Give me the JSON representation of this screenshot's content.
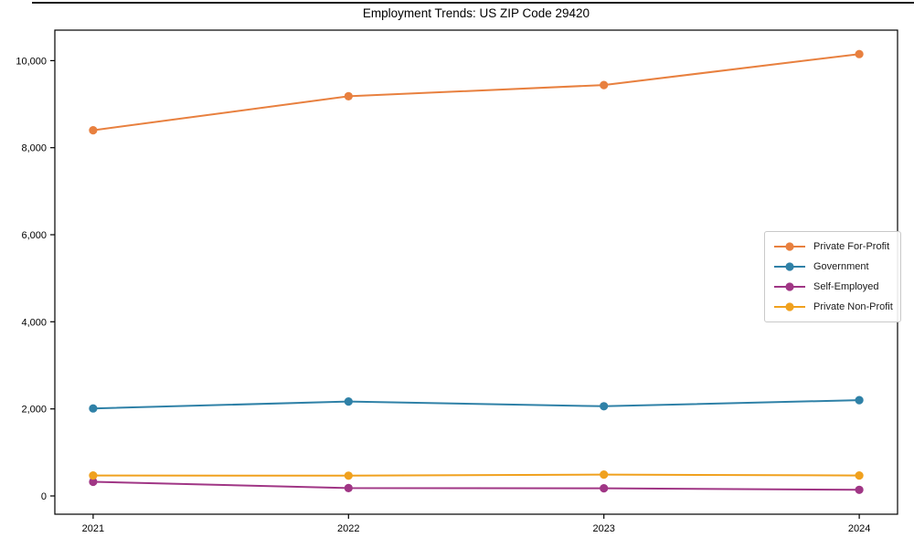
{
  "chart_data": {
    "type": "line",
    "title": "Employment Trends: US ZIP Code 29420",
    "x": [
      2021,
      2022,
      2023,
      2024
    ],
    "xtick_labels": [
      "2021",
      "2022",
      "2023",
      "2024"
    ],
    "yticks": [
      0,
      2000,
      4000,
      6000,
      8000,
      10000
    ],
    "ytick_labels": [
      "0",
      "2,000",
      "4,000",
      "6,000",
      "8,000",
      "10,000"
    ],
    "xlim": [
      2020.85,
      2024.15
    ],
    "ylim": [
      -420,
      10700
    ],
    "grid": false,
    "legend_position": "center-right",
    "marker": "circle",
    "series": [
      {
        "name": "Private For-Profit",
        "color": "#e8803f",
        "values": [
          8400,
          9180,
          9440,
          10150
        ]
      },
      {
        "name": "Government",
        "color": "#2f81a7",
        "values": [
          2010,
          2170,
          2060,
          2200
        ]
      },
      {
        "name": "Self-Employed",
        "color": "#a03685",
        "values": [
          325,
          180,
          175,
          140
        ]
      },
      {
        "name": "Private Non-Profit",
        "color": "#f0a11e",
        "values": [
          470,
          465,
          490,
          470
        ]
      }
    ]
  }
}
